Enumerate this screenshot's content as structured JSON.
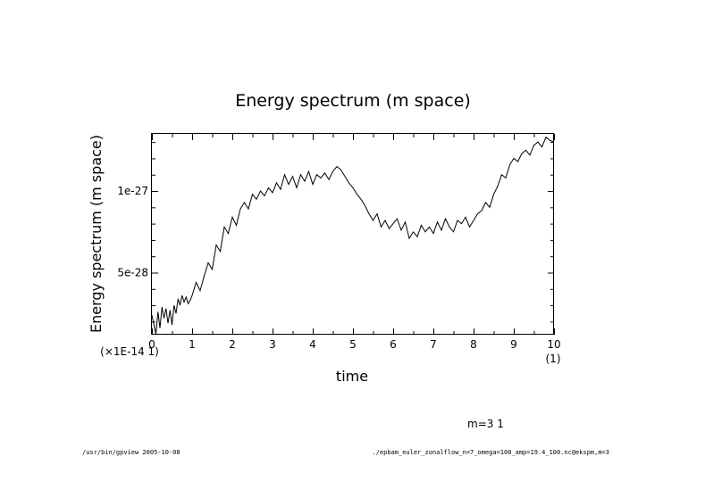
{
  "chart_data": {
    "type": "line",
    "title": "Energy spectrum (m space)",
    "xlabel": "time",
    "ylabel": "Energy spectrum (m space)",
    "x_multiplier": "(1)",
    "y_multiplier": "(×1E-14 1)",
    "xlim": [
      0,
      10
    ],
    "ylim": [
      1.2e-28,
      1.35e-27
    ],
    "x_ticks": [
      0,
      1,
      2,
      3,
      4,
      5,
      6,
      7,
      8,
      9,
      10
    ],
    "x_tick_labels": [
      "0",
      "1",
      "2",
      "3",
      "4",
      "5",
      "6",
      "7",
      "8",
      "9",
      "10"
    ],
    "y_ticks": [
      5e-28,
      1e-27
    ],
    "y_tick_labels": [
      "5e-28",
      "1e-27"
    ],
    "grid": false,
    "series": [
      {
        "x": [
          0.0,
          0.05,
          0.1,
          0.15,
          0.2,
          0.25,
          0.3,
          0.35,
          0.4,
          0.45,
          0.5,
          0.55,
          0.6,
          0.65,
          0.7,
          0.75,
          0.8,
          0.85,
          0.9,
          0.95,
          1.0,
          1.1,
          1.2,
          1.3,
          1.4,
          1.5,
          1.6,
          1.7,
          1.8,
          1.9,
          2.0,
          2.1,
          2.2,
          2.3,
          2.4,
          2.5,
          2.6,
          2.7,
          2.8,
          2.9,
          3.0,
          3.1,
          3.2,
          3.3,
          3.4,
          3.5,
          3.6,
          3.7,
          3.8,
          3.9,
          4.0,
          4.1,
          4.2,
          4.3,
          4.4,
          4.5,
          4.6,
          4.7,
          4.8,
          4.9,
          5.0,
          5.1,
          5.2,
          5.3,
          5.4,
          5.5,
          5.6,
          5.7,
          5.8,
          5.9,
          6.0,
          6.1,
          6.2,
          6.3,
          6.4,
          6.5,
          6.6,
          6.7,
          6.8,
          6.9,
          7.0,
          7.1,
          7.2,
          7.3,
          7.4,
          7.5,
          7.6,
          7.7,
          7.8,
          7.9,
          8.0,
          8.1,
          8.2,
          8.3,
          8.4,
          8.5,
          8.6,
          8.7,
          8.8,
          8.9,
          9.0,
          9.1,
          9.2,
          9.3,
          9.4,
          9.5,
          9.6,
          9.7,
          9.8,
          9.9,
          10.0
        ],
        "values": [
          2.4e-28,
          1.8e-28,
          1.25e-28,
          2.6e-28,
          1.6e-28,
          2.9e-28,
          2.2e-28,
          2.8e-28,
          1.9e-28,
          2.7e-28,
          1.8e-28,
          3e-28,
          2.5e-28,
          3.4e-28,
          3e-28,
          3.6e-28,
          3.2e-28,
          3.5e-28,
          3.1e-28,
          3.3e-28,
          3.6e-28,
          4.4e-28,
          3.9e-28,
          4.8e-28,
          5.6e-28,
          5.2e-28,
          6.7e-28,
          6.3e-28,
          7.8e-28,
          7.4e-28,
          8.4e-28,
          7.9e-28,
          8.9e-28,
          9.3e-28,
          8.9e-28,
          9.8e-28,
          9.5e-28,
          1e-27,
          9.7e-28,
          1.02e-27,
          9.9e-28,
          1.05e-27,
          1.01e-27,
          1.1e-27,
          1.04e-27,
          1.09e-27,
          1.02e-27,
          1.1e-27,
          1.06e-27,
          1.12e-27,
          1.04e-27,
          1.1e-27,
          1.08e-27,
          1.11e-27,
          1.07e-27,
          1.12e-27,
          1.15e-27,
          1.13e-27,
          1.09e-27,
          1.05e-27,
          1.02e-27,
          9.8e-28,
          9.5e-28,
          9.1e-28,
          8.6e-28,
          8.2e-28,
          8.6e-28,
          7.8e-28,
          8.2e-28,
          7.7e-28,
          8e-28,
          8.3e-28,
          7.6e-28,
          8.1e-28,
          7.1e-28,
          7.5e-28,
          7.2e-28,
          7.9e-28,
          7.5e-28,
          7.8e-28,
          7.4e-28,
          8.1e-28,
          7.6e-28,
          8.3e-28,
          7.8e-28,
          7.5e-28,
          8.2e-28,
          8e-28,
          8.4e-28,
          7.8e-28,
          8.2e-28,
          8.6e-28,
          8.8e-28,
          9.3e-28,
          9e-28,
          9.8e-28,
          1.03e-27,
          1.1e-27,
          1.08e-27,
          1.16e-27,
          1.2e-27,
          1.18e-27,
          1.23e-27,
          1.25e-27,
          1.22e-27,
          1.28e-27,
          1.3e-27,
          1.27e-27,
          1.33e-27,
          1.31e-27,
          1.3e-27
        ]
      }
    ],
    "annotations": {
      "mode": "m=3 1",
      "footer_left": "/usr/bin/gpview  2005-10-08",
      "footer_right": "./epbam_euler_zonalflow_n=7_omega=100_amp=19.4_100.nc@ekspm,m=3"
    }
  }
}
